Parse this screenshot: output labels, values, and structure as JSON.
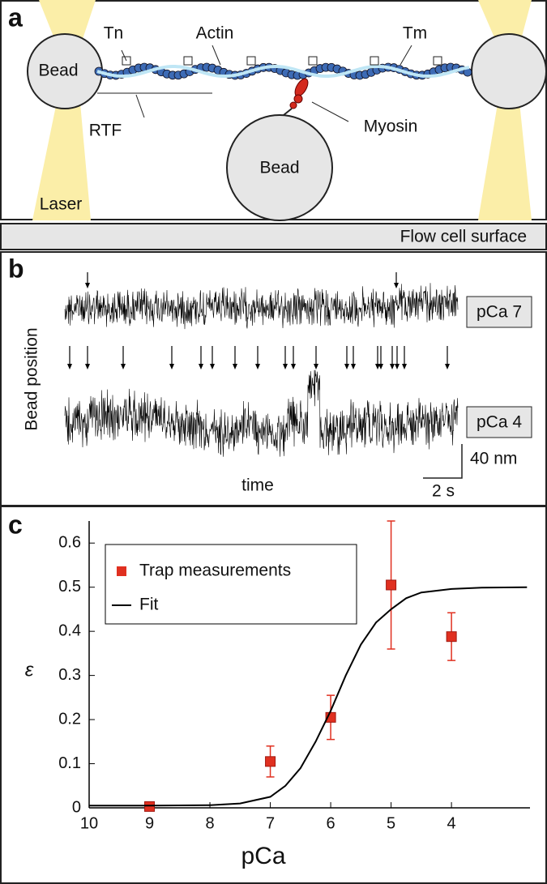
{
  "panel_a": {
    "letter": "a",
    "bead_left": "Bead",
    "tn": "Tn",
    "actin": "Actin",
    "tm": "Tm",
    "rtf": "RTF",
    "myosin": "Myosin",
    "bead_bottom": "Bead",
    "laser": "Laser",
    "surface": "Flow cell surface"
  },
  "panel_b": {
    "letter": "b",
    "ylabel": "Bead position",
    "trace_top": "pCa 7",
    "trace_bottom": "pCa 4",
    "scale_y": "40 nm",
    "xlabel": "time",
    "scale_x": "2 s"
  },
  "chart_data": {
    "type": "scatter",
    "letter": "c",
    "xlabel": "pCa",
    "ylabel": "ε",
    "xlim": [
      10,
      2.7
    ],
    "ylim": [
      0,
      0.65
    ],
    "xticks": [
      10,
      9,
      8,
      7,
      6,
      5,
      4
    ],
    "yticks": [
      0,
      0.1,
      0.2,
      0.3,
      0.4,
      0.5,
      0.6
    ],
    "series": [
      {
        "name": "Trap measurements",
        "type": "scatter",
        "color": "#e03020",
        "x": [
          9,
          7,
          6,
          5,
          4
        ],
        "values": [
          0.003,
          0.105,
          0.205,
          0.505,
          0.388
        ],
        "errors": [
          0,
          0.035,
          0.05,
          0.145,
          0.054
        ]
      },
      {
        "name": "Fit",
        "type": "line",
        "color": "#000000",
        "x": [
          10,
          9,
          8,
          7.5,
          7,
          6.75,
          6.5,
          6.25,
          6,
          5.75,
          5.5,
          5.25,
          5,
          4.75,
          4.5,
          4,
          3.5,
          2.75
        ],
        "values": [
          0.005,
          0.005,
          0.006,
          0.01,
          0.025,
          0.05,
          0.09,
          0.15,
          0.22,
          0.3,
          0.37,
          0.42,
          0.45,
          0.475,
          0.488,
          0.496,
          0.499,
          0.5
        ]
      }
    ],
    "legend": "upper left"
  }
}
